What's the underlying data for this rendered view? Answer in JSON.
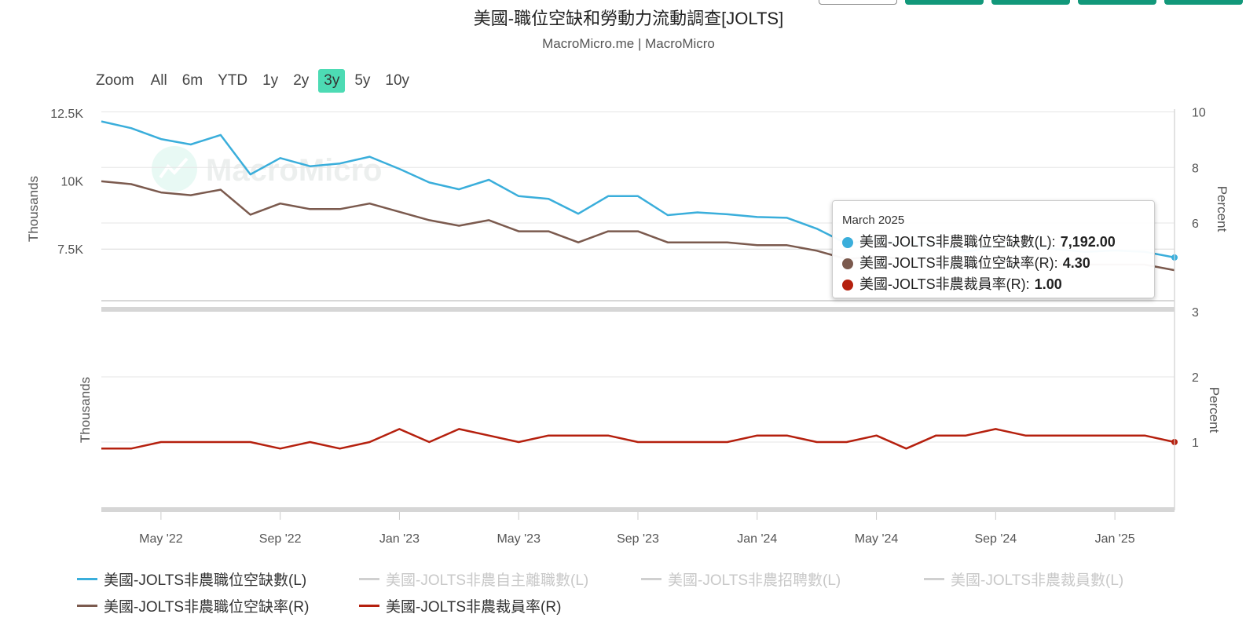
{
  "title": "美國-職位空缺和勞動力流動調查[JOLTS]",
  "subtitle": "MacroMicro.me | MacroMicro",
  "watermark": "MacroMicro",
  "zoom": {
    "label": "Zoom",
    "buttons": [
      "All",
      "6m",
      "YTD",
      "1y",
      "2y",
      "3y",
      "5y",
      "10y"
    ],
    "active": "3y"
  },
  "colors": {
    "openings": "#3aaedb",
    "openings_rate": "#7b5a4e",
    "layoffs_rate": "#b5200e",
    "hidden": "#d0d0d0",
    "grid": "#e6e6e6"
  },
  "chart_data": [
    {
      "type": "line",
      "panel": "top",
      "x": [
        "2022-03",
        "2022-04",
        "2022-05",
        "2022-06",
        "2022-07",
        "2022-08",
        "2022-09",
        "2022-10",
        "2022-11",
        "2022-12",
        "2023-01",
        "2023-02",
        "2023-03",
        "2023-04",
        "2023-05",
        "2023-06",
        "2023-07",
        "2023-08",
        "2023-09",
        "2023-10",
        "2023-11",
        "2023-12",
        "2024-01",
        "2024-02",
        "2024-03",
        "2024-04",
        "2024-05",
        "2024-06",
        "2024-07",
        "2024-08",
        "2024-09",
        "2024-10",
        "2024-11",
        "2024-12",
        "2025-01",
        "2025-02",
        "2025-03"
      ],
      "series": [
        {
          "name": "美國-JOLTS非農職位空缺數(L)",
          "axis": "left",
          "values": [
            12200,
            11950,
            11550,
            11350,
            11700,
            10250,
            10850,
            10550,
            10650,
            10900,
            10450,
            9950,
            9700,
            10050,
            9450,
            9350,
            8800,
            9450,
            9450,
            8750,
            8850,
            8780,
            8680,
            8650,
            8250,
            7700,
            7850,
            7650,
            7750,
            7400,
            7600,
            7650,
            7500,
            7400,
            7450,
            7400,
            7192
          ]
        },
        {
          "name": "美國-JOLTS非農職位空缺率(R)",
          "axis": "right",
          "values": [
            7.5,
            7.4,
            7.1,
            7.0,
            7.2,
            6.3,
            6.7,
            6.5,
            6.5,
            6.7,
            6.4,
            6.1,
            5.9,
            6.1,
            5.7,
            5.7,
            5.3,
            5.7,
            5.7,
            5.3,
            5.3,
            5.3,
            5.2,
            5.2,
            5.0,
            4.7,
            4.8,
            4.7,
            4.7,
            4.5,
            4.6,
            4.6,
            4.5,
            4.5,
            4.5,
            4.5,
            4.3
          ]
        }
      ],
      "y_left": {
        "label": "Thousands",
        "ticks": [
          "7.5K",
          "10K",
          "12.5K"
        ],
        "tick_values": [
          7500,
          10000,
          12500
        ],
        "range": [
          5600,
          12650
        ]
      },
      "y_right": {
        "label": "Percent",
        "ticks": [
          "6",
          "8",
          "10"
        ],
        "tick_values": [
          6,
          8,
          10
        ],
        "range": [
          3.2,
          10.1
        ]
      }
    },
    {
      "type": "line",
      "panel": "bottom",
      "x": [
        "2022-03",
        "2022-04",
        "2022-05",
        "2022-06",
        "2022-07",
        "2022-08",
        "2022-09",
        "2022-10",
        "2022-11",
        "2022-12",
        "2023-01",
        "2023-02",
        "2023-03",
        "2023-04",
        "2023-05",
        "2023-06",
        "2023-07",
        "2023-08",
        "2023-09",
        "2023-10",
        "2023-11",
        "2023-12",
        "2024-01",
        "2024-02",
        "2024-03",
        "2024-04",
        "2024-05",
        "2024-06",
        "2024-07",
        "2024-08",
        "2024-09",
        "2024-10",
        "2024-11",
        "2024-12",
        "2025-01",
        "2025-02",
        "2025-03"
      ],
      "series": [
        {
          "name": "美國-JOLTS非農裁員率(R)",
          "axis": "right",
          "values": [
            0.9,
            0.9,
            1.0,
            1.0,
            1.0,
            1.0,
            0.9,
            1.0,
            0.9,
            1.0,
            1.2,
            1.0,
            1.2,
            1.1,
            1.0,
            1.1,
            1.1,
            1.1,
            1.0,
            1.0,
            1.0,
            1.0,
            1.1,
            1.1,
            1.0,
            1.0,
            1.1,
            0.9,
            1.1,
            1.1,
            1.2,
            1.1,
            1.1,
            1.1,
            1.1,
            1.1,
            1.0
          ]
        }
      ],
      "y_left": {
        "label": "Thousands"
      },
      "y_right": {
        "label": "Percent",
        "ticks": [
          "3",
          "2",
          "1"
        ],
        "tick_values": [
          3,
          2,
          1
        ],
        "range": [
          0,
          3
        ]
      }
    }
  ],
  "x_axis": {
    "ticks": [
      "May '22",
      "Sep '22",
      "Jan '23",
      "May '23",
      "Sep '23",
      "Jan '24",
      "May '24",
      "Sep '24",
      "Jan '25"
    ],
    "tick_months": [
      "2022-05",
      "2022-09",
      "2023-01",
      "2023-05",
      "2023-09",
      "2024-01",
      "2024-05",
      "2024-09",
      "2025-01"
    ]
  },
  "tooltip": {
    "date": "March 2025",
    "rows": [
      {
        "name": "美國-JOLTS非農職位空缺數(L)",
        "value": "7,192.00",
        "color": "#3aaedb"
      },
      {
        "name": "美國-JOLTS非農職位空缺率(R)",
        "value": "4.30",
        "color": "#7b5a4e"
      },
      {
        "name": "美國-JOLTS非農裁員率(R)",
        "value": "1.00",
        "color": "#b5200e"
      }
    ]
  },
  "legend": [
    {
      "label": "美國-JOLTS非農職位空缺數(L)",
      "visible": true,
      "color": "#3aaedb"
    },
    {
      "label": "美國-JOLTS非農自主離職數(L)",
      "visible": false,
      "color": "#d0d0d0"
    },
    {
      "label": "美國-JOLTS非農招聘數(L)",
      "visible": false,
      "color": "#d0d0d0"
    },
    {
      "label": "美國-JOLTS非農裁員數(L)",
      "visible": false,
      "color": "#d0d0d0"
    },
    {
      "label": "美國-JOLTS非農職位空缺率(R)",
      "visible": true,
      "color": "#7b5a4e"
    },
    {
      "label": "美國-JOLTS非農裁員率(R)",
      "visible": true,
      "color": "#b5200e"
    }
  ]
}
